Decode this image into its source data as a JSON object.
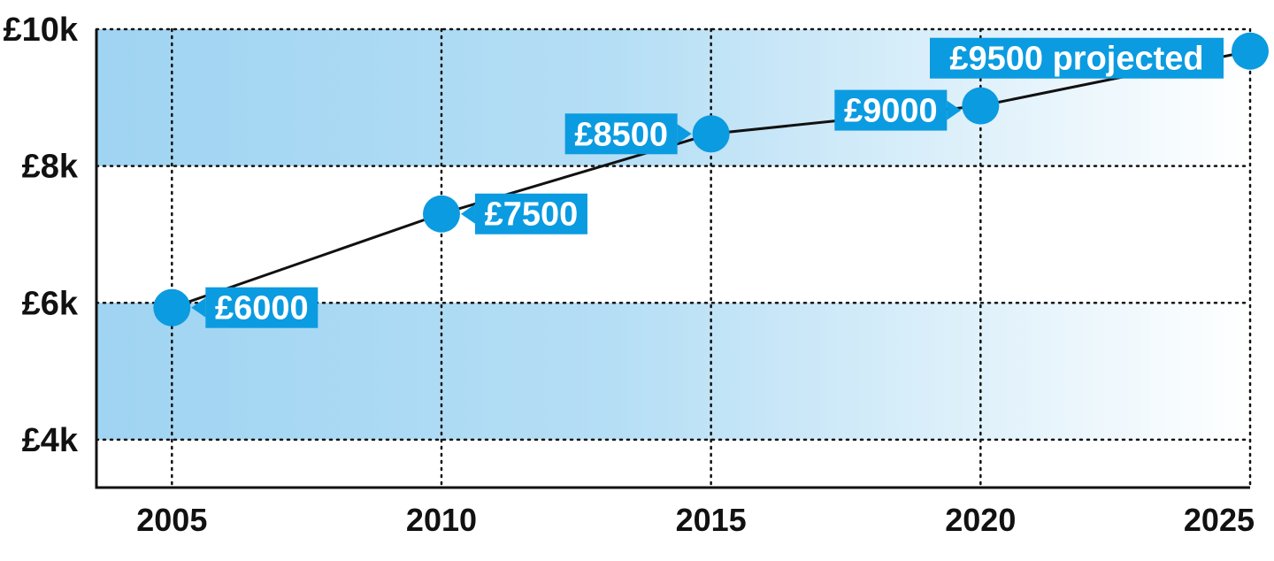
{
  "chart_data": {
    "type": "line",
    "title": "",
    "xlabel": "",
    "ylabel": "",
    "x": [
      2005,
      2010,
      2015,
      2020,
      2025
    ],
    "xlim": [
      2003.6,
      2025
    ],
    "ylim": [
      3300,
      10000
    ],
    "x_ticks": [
      2005,
      2010,
      2015,
      2020,
      2025
    ],
    "x_tick_labels": [
      "2005",
      "2010",
      "2015",
      "2020",
      "2025"
    ],
    "y_ticks": [
      10000,
      8000,
      6000,
      4000
    ],
    "y_tick_labels": [
      "£10k",
      "£8k",
      "£6k",
      "£4k"
    ],
    "grid": true,
    "shaded_bands": [
      {
        "from": 8000,
        "to": 10000
      },
      {
        "from": 4000,
        "to": 6000
      }
    ],
    "series": [
      {
        "values": [
          5930,
          7300,
          8470,
          8880,
          9680
        ],
        "data_labels": [
          "£6000",
          "£7500",
          "£8500",
          "£9000",
          "£9500 projected"
        ],
        "color": "#0b9be0"
      }
    ],
    "colors": {
      "marker": "#0b9be0",
      "label_box": "#0b9be0",
      "band": "#9fd4f2",
      "axis": "#111111"
    }
  }
}
